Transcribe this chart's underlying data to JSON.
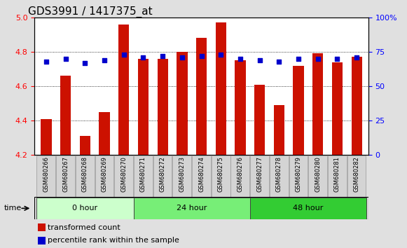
{
  "title": "GDS3991 / 1417375_at",
  "samples": [
    "GSM680266",
    "GSM680267",
    "GSM680268",
    "GSM680269",
    "GSM680270",
    "GSM680271",
    "GSM680272",
    "GSM680273",
    "GSM680274",
    "GSM680275",
    "GSM680276",
    "GSM680277",
    "GSM680278",
    "GSM680279",
    "GSM680280",
    "GSM680281",
    "GSM680282"
  ],
  "transformed_count": [
    4.41,
    4.66,
    4.31,
    4.45,
    4.96,
    4.76,
    4.76,
    4.8,
    4.88,
    4.97,
    4.75,
    4.61,
    4.49,
    4.72,
    4.79,
    4.74,
    4.77
  ],
  "percentile_rank": [
    68,
    70,
    67,
    69,
    73,
    71,
    72,
    71,
    72,
    73,
    70,
    69,
    68,
    70,
    70,
    70,
    71
  ],
  "groups": [
    {
      "label": "0 hour",
      "start": 0,
      "end": 5,
      "color": "#ccffcc"
    },
    {
      "label": "24 hour",
      "start": 5,
      "end": 11,
      "color": "#77ee77"
    },
    {
      "label": "48 hour",
      "start": 11,
      "end": 17,
      "color": "#33cc33"
    }
  ],
  "ylim_left": [
    4.2,
    5.0
  ],
  "ylim_right": [
    0,
    100
  ],
  "yticks_left": [
    4.2,
    4.4,
    4.6,
    4.8,
    5.0
  ],
  "yticks_right": [
    0,
    25,
    50,
    75,
    100
  ],
  "bar_color": "#cc1100",
  "dot_color": "#0000cc",
  "bar_width": 0.55,
  "bg_color": "#e0e0e0",
  "plot_bg": "#ffffff",
  "title_fontsize": 11,
  "tick_fontsize": 8,
  "label_fontsize": 8,
  "sample_fontsize": 6
}
